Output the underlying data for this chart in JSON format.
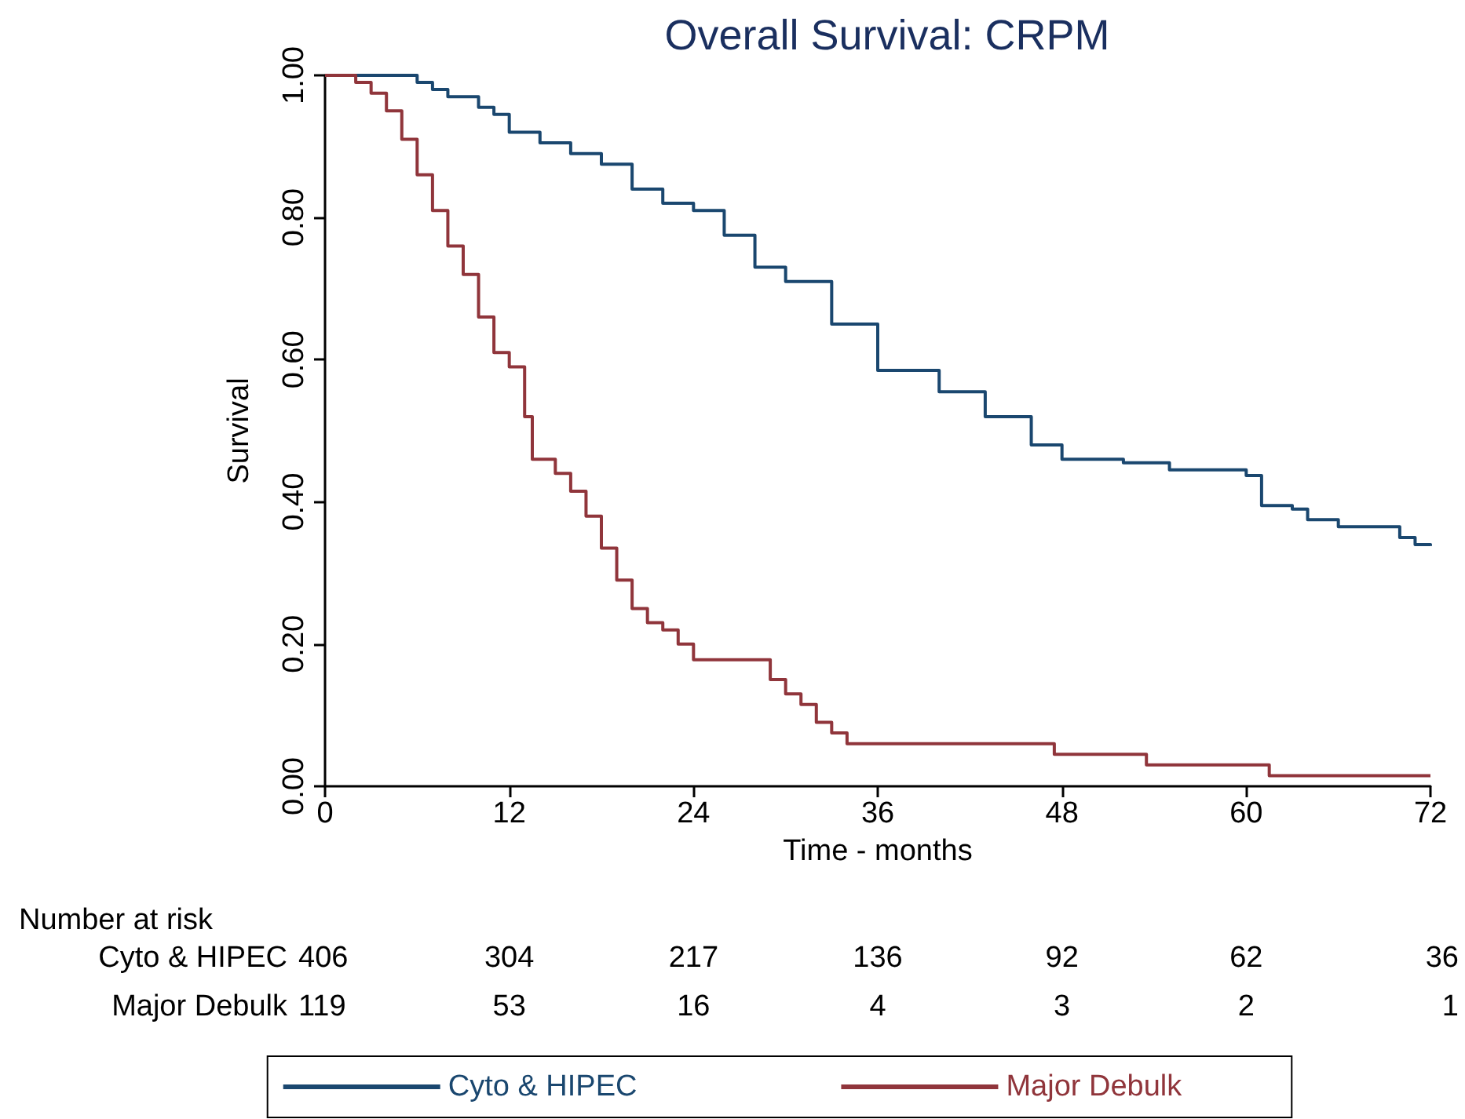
{
  "chart_data": {
    "type": "step",
    "title": "Overall Survival: CRPM",
    "xlabel": "Time - months",
    "ylabel": "Survival",
    "xlim": [
      0,
      72
    ],
    "xticks": [
      0,
      12,
      24,
      36,
      48,
      60,
      72
    ],
    "ylim": [
      0,
      1
    ],
    "yticks": [
      {
        "value": 0,
        "label": "0.00"
      },
      {
        "value": 0.2,
        "label": "0.20"
      },
      {
        "value": 0.4,
        "label": "0.40"
      },
      {
        "value": 0.6,
        "label": "0.60"
      },
      {
        "value": 0.8,
        "label": "0.80"
      },
      {
        "value": 1,
        "label": "1.00"
      }
    ],
    "grid": false,
    "legend": "bottom",
    "marker": "none",
    "line_style": "solid",
    "series": [
      {
        "name": "Cyto & HIPEC",
        "color": "#1a476f",
        "x": [
          0,
          5,
          6,
          7,
          8,
          10,
          11,
          12,
          14,
          16,
          18,
          20,
          22,
          24,
          26,
          28,
          30,
          33,
          36,
          40,
          43,
          46,
          48,
          52,
          55,
          60,
          61,
          63,
          64,
          66,
          70,
          71,
          72
        ],
        "values": [
          1,
          1,
          0.99,
          0.98,
          0.97,
          0.955,
          0.945,
          0.92,
          0.905,
          0.89,
          0.875,
          0.84,
          0.82,
          0.81,
          0.775,
          0.73,
          0.71,
          0.65,
          0.585,
          0.555,
          0.52,
          0.48,
          0.46,
          0.455,
          0.445,
          0.437,
          0.395,
          0.39,
          0.375,
          0.365,
          0.35,
          0.34,
          0.338
        ]
      },
      {
        "name": "Major Debulk",
        "color": "#90353b",
        "x": [
          0,
          1,
          2,
          3,
          4,
          5,
          6,
          7,
          8,
          9,
          10,
          11,
          12,
          13,
          13.5,
          15,
          16,
          17,
          18,
          19,
          20,
          21,
          22,
          23,
          24,
          28,
          29,
          30,
          31,
          32,
          33,
          34,
          47.5,
          53.5,
          61.5,
          72
        ],
        "values": [
          1,
          1,
          0.99,
          0.975,
          0.95,
          0.91,
          0.86,
          0.81,
          0.76,
          0.72,
          0.66,
          0.61,
          0.59,
          0.52,
          0.46,
          0.44,
          0.415,
          0.38,
          0.335,
          0.29,
          0.25,
          0.23,
          0.22,
          0.2,
          0.178,
          0.178,
          0.15,
          0.13,
          0.115,
          0.09,
          0.075,
          0.06,
          0.045,
          0.03,
          0.015,
          0.015
        ]
      }
    ],
    "annotations": [
      "Number at risk",
      "Cyto & HIPEC",
      "406",
      "304",
      "217",
      "136",
      "92",
      "62",
      "36",
      "Major Debulk",
      "119",
      "53",
      "16",
      "4",
      "3",
      "2",
      "1"
    ]
  }
}
